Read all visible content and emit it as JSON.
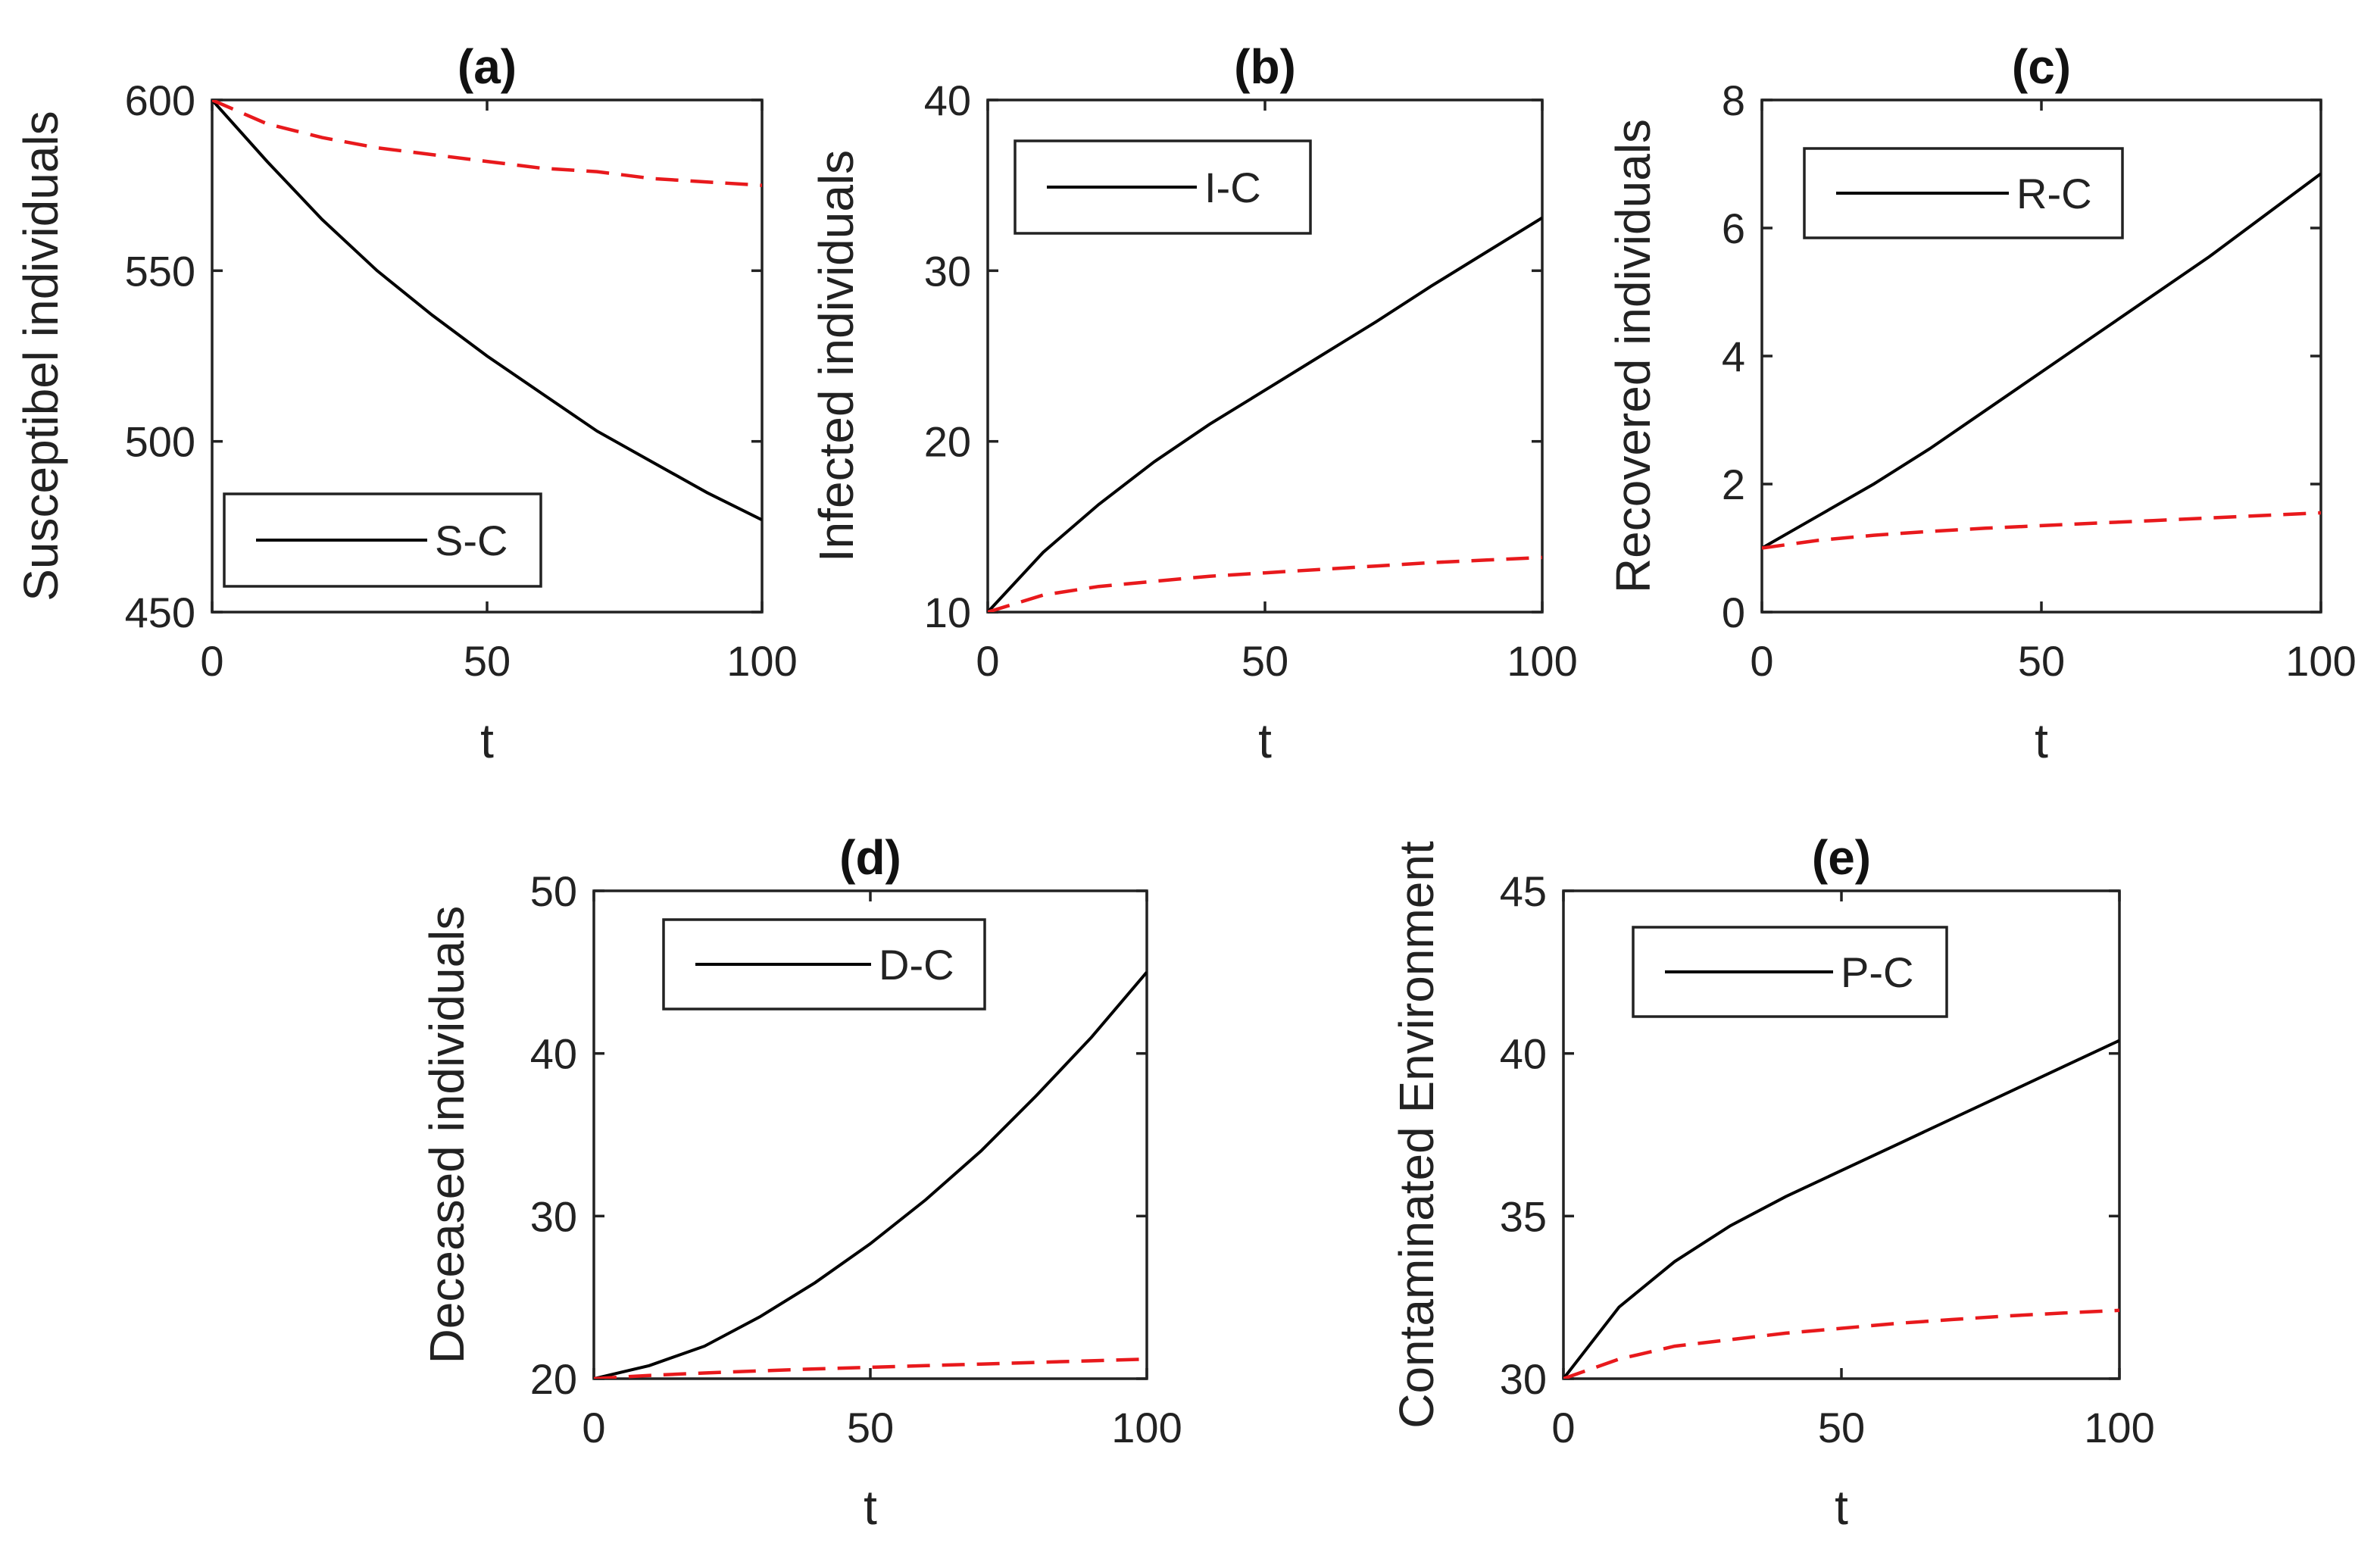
{
  "chart_data": [
    {
      "id": "a",
      "type": "line",
      "title": "(a)",
      "xlabel": "t",
      "ylabel": "Susceptibel individuals",
      "xlim": [
        0,
        100
      ],
      "ylim": [
        450,
        600
      ],
      "xticks": [
        "0",
        "50",
        "100"
      ],
      "yticks": [
        "450",
        "500",
        "550",
        "600"
      ],
      "legend": {
        "label": "S-C",
        "placement": "bottom-left"
      },
      "series": [
        {
          "name": "S-C",
          "style": "solid",
          "color": "#000000",
          "x": [
            0,
            10,
            20,
            30,
            40,
            50,
            60,
            70,
            80,
            90,
            100
          ],
          "y": [
            600,
            582,
            565,
            550,
            537,
            525,
            514,
            503,
            494,
            485,
            477
          ]
        },
        {
          "name": "",
          "style": "dashed",
          "color": "#e8191c",
          "x": [
            0,
            10,
            20,
            30,
            40,
            50,
            60,
            70,
            80,
            90,
            100
          ],
          "y": [
            600,
            593,
            589,
            586,
            584,
            582,
            580,
            579,
            577,
            576,
            575
          ]
        }
      ]
    },
    {
      "id": "b",
      "type": "line",
      "title": "(b)",
      "xlabel": "t",
      "ylabel": "Infected individuals",
      "xlim": [
        0,
        100
      ],
      "ylim": [
        10,
        40
      ],
      "xticks": [
        "0",
        "50",
        "100"
      ],
      "yticks": [
        "10",
        "20",
        "30",
        "40"
      ],
      "legend": {
        "label": "I-C",
        "placement": "top-left"
      },
      "series": [
        {
          "name": "I-C",
          "style": "solid",
          "color": "#000000",
          "x": [
            0,
            10,
            20,
            30,
            40,
            50,
            60,
            70,
            80,
            90,
            100
          ],
          "y": [
            10,
            13.5,
            16.3,
            18.8,
            21.0,
            23.0,
            25.0,
            27.0,
            29.1,
            31.1,
            33.1
          ]
        },
        {
          "name": "",
          "style": "dashed",
          "color": "#e8191c",
          "x": [
            0,
            10,
            20,
            30,
            40,
            50,
            60,
            70,
            80,
            90,
            100
          ],
          "y": [
            10,
            11.0,
            11.5,
            11.8,
            12.1,
            12.3,
            12.5,
            12.7,
            12.9,
            13.05,
            13.2
          ]
        }
      ]
    },
    {
      "id": "c",
      "type": "line",
      "title": "(c)",
      "xlabel": "t",
      "ylabel": "Recovered individuals",
      "xlim": [
        0,
        100
      ],
      "ylim": [
        0,
        8
      ],
      "xticks": [
        "0",
        "50",
        "100"
      ],
      "yticks": [
        "0",
        "2",
        "4",
        "6",
        "8"
      ],
      "legend": {
        "label": "R-C",
        "placement": "top-left"
      },
      "series": [
        {
          "name": "R-C",
          "style": "solid",
          "color": "#000000",
          "x": [
            0,
            10,
            20,
            30,
            40,
            50,
            60,
            70,
            80,
            90,
            100
          ],
          "y": [
            1.0,
            1.5,
            2.0,
            2.55,
            3.15,
            3.75,
            4.35,
            4.95,
            5.55,
            6.2,
            6.85
          ]
        },
        {
          "name": "",
          "style": "dashed",
          "color": "#e8191c",
          "x": [
            0,
            10,
            20,
            30,
            40,
            50,
            60,
            70,
            80,
            90,
            100
          ],
          "y": [
            1.0,
            1.12,
            1.2,
            1.26,
            1.31,
            1.35,
            1.39,
            1.43,
            1.47,
            1.51,
            1.55
          ]
        }
      ]
    },
    {
      "id": "d",
      "type": "line",
      "title": "(d)",
      "xlabel": "t",
      "ylabel": "Deceased individuals",
      "xlim": [
        0,
        100
      ],
      "ylim": [
        20,
        50
      ],
      "xticks": [
        "0",
        "50",
        "100"
      ],
      "yticks": [
        "20",
        "30",
        "40",
        "50"
      ],
      "legend": {
        "label": "D-C",
        "placement": "top-center"
      },
      "series": [
        {
          "name": "D-C",
          "style": "solid",
          "color": "#000000",
          "x": [
            0,
            10,
            20,
            30,
            40,
            50,
            60,
            70,
            80,
            90,
            100
          ],
          "y": [
            20,
            20.8,
            22.0,
            23.8,
            25.9,
            28.3,
            31.0,
            34.0,
            37.4,
            41.0,
            45.0
          ]
        },
        {
          "name": "",
          "style": "dashed",
          "color": "#e8191c",
          "x": [
            0,
            10,
            20,
            30,
            40,
            50,
            60,
            70,
            80,
            90,
            100
          ],
          "y": [
            20,
            20.2,
            20.35,
            20.48,
            20.6,
            20.7,
            20.8,
            20.9,
            21.0,
            21.1,
            21.2
          ]
        }
      ]
    },
    {
      "id": "e",
      "type": "line",
      "title": "(e)",
      "xlabel": "t",
      "ylabel": "Contaminated Environment",
      "xlim": [
        0,
        100
      ],
      "ylim": [
        30,
        45
      ],
      "xticks": [
        "0",
        "50",
        "100"
      ],
      "yticks": [
        "30",
        "35",
        "40",
        "45"
      ],
      "legend": {
        "label": "P-C",
        "placement": "top-left"
      },
      "series": [
        {
          "name": "P-C",
          "style": "solid",
          "color": "#000000",
          "x": [
            0,
            10,
            20,
            30,
            40,
            50,
            60,
            70,
            80,
            90,
            100
          ],
          "y": [
            30,
            32.2,
            33.6,
            34.7,
            35.6,
            36.4,
            37.2,
            38.0,
            38.8,
            39.6,
            40.4
          ]
        },
        {
          "name": "",
          "style": "dashed",
          "color": "#e8191c",
          "x": [
            0,
            10,
            20,
            30,
            40,
            50,
            60,
            70,
            80,
            90,
            100
          ],
          "y": [
            30,
            30.6,
            31.0,
            31.2,
            31.4,
            31.55,
            31.7,
            31.82,
            31.93,
            32.02,
            32.1
          ]
        }
      ]
    }
  ]
}
